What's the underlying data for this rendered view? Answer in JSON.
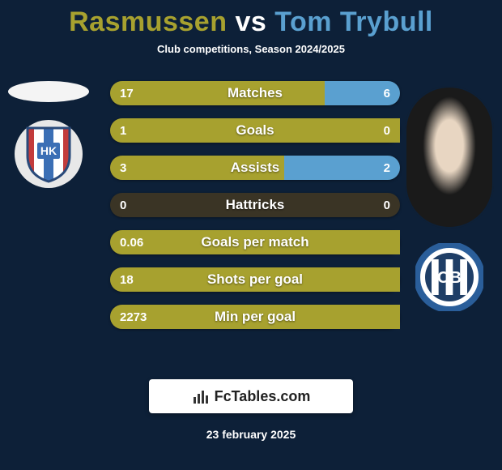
{
  "header": {
    "player1_name": "Rasmussen",
    "vs": "vs",
    "player2_name": "Tom Trybull",
    "player1_color": "#a7a12f",
    "player2_color": "#5aa0d0",
    "subtitle": "Club competitions, Season 2024/2025"
  },
  "stats": {
    "bar_left_color": "#a7a12f",
    "bar_right_color": "#5aa0d0",
    "bar_empty_color": "#3a3425",
    "rows": [
      {
        "label": "Matches",
        "left": "17",
        "right": "6",
        "left_pct": 74,
        "right_pct": 26
      },
      {
        "label": "Goals",
        "left": "1",
        "right": "0",
        "left_pct": 100,
        "right_pct": 0
      },
      {
        "label": "Assists",
        "left": "3",
        "right": "2",
        "left_pct": 60,
        "right_pct": 40
      },
      {
        "label": "Hattricks",
        "left": "0",
        "right": "0",
        "left_pct": 0,
        "right_pct": 0
      },
      {
        "label": "Goals per match",
        "left": "0.06",
        "right": "",
        "left_pct": 100,
        "right_pct": 0
      },
      {
        "label": "Shots per goal",
        "left": "18",
        "right": "",
        "left_pct": 100,
        "right_pct": 0
      },
      {
        "label": "Min per goal",
        "left": "2273",
        "right": "",
        "left_pct": 100,
        "right_pct": 0
      }
    ]
  },
  "clubs": {
    "left": {
      "name": "hobro-ik",
      "shield_stripes": [
        "#c33b3b",
        "#ffffff",
        "#3b6fb5",
        "#ffffff",
        "#c33b3b"
      ],
      "monogram": "HK",
      "monogram_bg": "#3b6fb5",
      "monogram_color": "#ffffff"
    },
    "right": {
      "name": "odense-bk",
      "ring_color": "#2a5e9a",
      "inner_bg": "#1f3e66",
      "inner_stripes": [
        "#ffffff",
        "#1f3e66",
        "#ffffff",
        "#1f3e66",
        "#ffffff"
      ],
      "monogram": "OB",
      "monogram_color": "#ffffff"
    }
  },
  "brand": {
    "icon": "chart-bars-icon",
    "text": "FcTables.com"
  },
  "date": "23 february 2025",
  "colors": {
    "background": "#0d2038",
    "text": "#ffffff"
  }
}
